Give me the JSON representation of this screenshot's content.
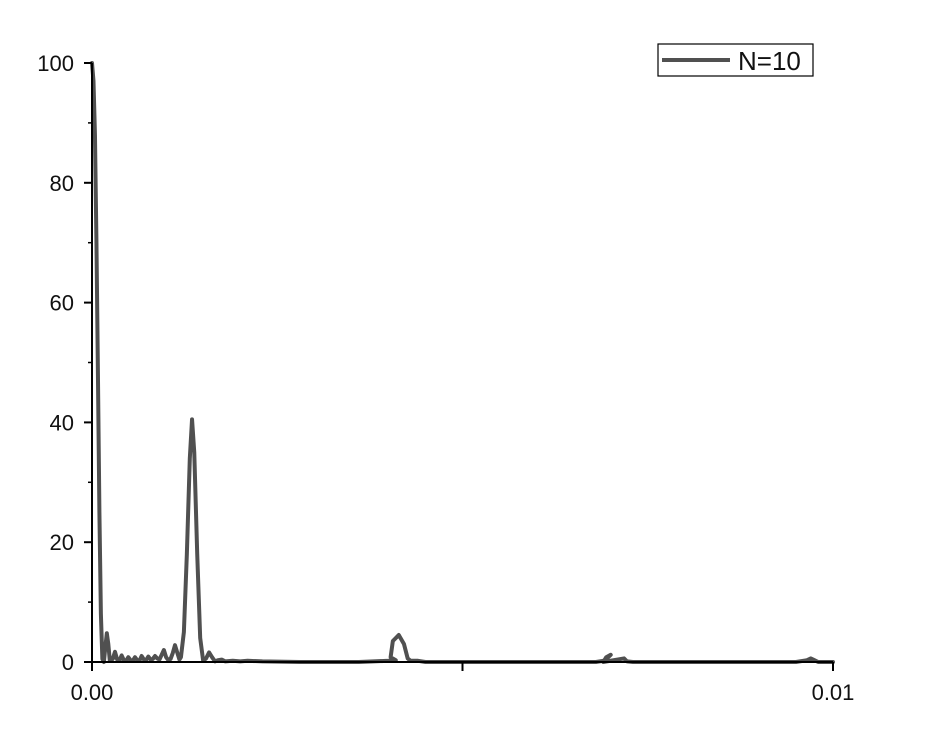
{
  "chart_data": {
    "type": "line",
    "title": "",
    "xlabel": "",
    "ylabel": "",
    "xlim": [
      0,
      0.01
    ],
    "ylim": [
      0,
      100
    ],
    "x_ticks": [
      {
        "value": 0,
        "label": "0.00"
      },
      {
        "value": 0.005,
        "label": ""
      },
      {
        "value": 0.01,
        "label": "0.01"
      }
    ],
    "y_ticks": [
      {
        "value": 0,
        "label": "0"
      },
      {
        "value": 20,
        "label": "20"
      },
      {
        "value": 40,
        "label": "40"
      },
      {
        "value": 60,
        "label": "60"
      },
      {
        "value": 80,
        "label": "80"
      },
      {
        "value": 100,
        "label": "100"
      }
    ],
    "grid": false,
    "legend": {
      "position": "top-right"
    },
    "series": [
      {
        "name": "N=10",
        "color": "#505050",
        "points": [
          [
            0.0,
            100.0
          ],
          [
            2e-05,
            97.0
          ],
          [
            4e-05,
            88.0
          ],
          [
            6e-05,
            70.0
          ],
          [
            8e-05,
            48.0
          ],
          [
            0.0001,
            25.0
          ],
          [
            0.00012,
            8.0
          ],
          [
            0.00014,
            0.5
          ],
          [
            0.00016,
            0.0
          ],
          [
            0.00018,
            2.5
          ],
          [
            0.0002,
            4.8
          ],
          [
            0.00022,
            3.0
          ],
          [
            0.00024,
            0.3
          ],
          [
            0.00028,
            0.5
          ],
          [
            0.00031,
            1.7
          ],
          [
            0.00034,
            0.4
          ],
          [
            0.00037,
            0.2
          ],
          [
            0.0004,
            1.1
          ],
          [
            0.00043,
            0.3
          ],
          [
            0.00046,
            0.2
          ],
          [
            0.00049,
            0.8
          ],
          [
            0.00052,
            0.3
          ],
          [
            0.00055,
            0.2
          ],
          [
            0.00058,
            0.8
          ],
          [
            0.00061,
            0.3
          ],
          [
            0.00064,
            0.2
          ],
          [
            0.00067,
            1.0
          ],
          [
            0.0007,
            0.4
          ],
          [
            0.00073,
            0.3
          ],
          [
            0.00076,
            0.9
          ],
          [
            0.00079,
            0.4
          ],
          [
            0.00082,
            0.5
          ],
          [
            0.00085,
            1.0
          ],
          [
            0.00088,
            0.6
          ],
          [
            0.00091,
            0.4
          ],
          [
            0.00094,
            1.2
          ],
          [
            0.00097,
            2.0
          ],
          [
            0.001,
            0.8
          ],
          [
            0.00103,
            0.3
          ],
          [
            0.00106,
            0.5
          ],
          [
            0.00109,
            1.5
          ],
          [
            0.00112,
            2.8
          ],
          [
            0.00115,
            1.6
          ],
          [
            0.00118,
            0.4
          ],
          [
            0.0012,
            0.8
          ],
          [
            0.00124,
            5.0
          ],
          [
            0.00128,
            18.0
          ],
          [
            0.00132,
            34.0
          ],
          [
            0.00135,
            40.5
          ],
          [
            0.00138,
            35.0
          ],
          [
            0.00142,
            18.0
          ],
          [
            0.00146,
            4.0
          ],
          [
            0.0015,
            0.2
          ],
          [
            0.00154,
            0.6
          ],
          [
            0.00158,
            1.6
          ],
          [
            0.00162,
            0.8
          ],
          [
            0.00166,
            0.1
          ],
          [
            0.0017,
            0.3
          ],
          [
            0.00175,
            0.4
          ],
          [
            0.0018,
            0.1
          ],
          [
            0.0019,
            0.2
          ],
          [
            0.002,
            0.1
          ],
          [
            0.0021,
            0.2
          ],
          [
            0.0023,
            0.1
          ],
          [
            0.0028,
            0.0
          ],
          [
            0.0036,
            0.0
          ],
          [
            0.0038,
            0.1
          ],
          [
            0.004,
            0.2
          ],
          [
            0.0041,
            0.3
          ],
          [
            0.00403,
            0.8
          ],
          [
            0.00406,
            3.5
          ],
          [
            0.00414,
            4.5
          ],
          [
            0.00421,
            3.0
          ],
          [
            0.00426,
            0.6
          ],
          [
            0.0043,
            0.2
          ],
          [
            0.0044,
            0.2
          ],
          [
            0.0045,
            0.0
          ],
          [
            0.0068,
            0.0
          ],
          [
            0.0069,
            0.2
          ],
          [
            0.00695,
            0.6
          ],
          [
            0.007,
            1.2
          ],
          [
            0.00694,
            0.8
          ],
          [
            0.0069,
            0.0
          ],
          [
            0.00718,
            0.6
          ],
          [
            0.00722,
            0.1
          ],
          [
            0.0073,
            0.0
          ],
          [
            0.0095,
            0.0
          ],
          [
            0.00965,
            0.3
          ],
          [
            0.0097,
            0.6
          ],
          [
            0.00975,
            0.3
          ],
          [
            0.0098,
            0.0
          ],
          [
            0.01,
            0.0
          ]
        ]
      }
    ]
  }
}
